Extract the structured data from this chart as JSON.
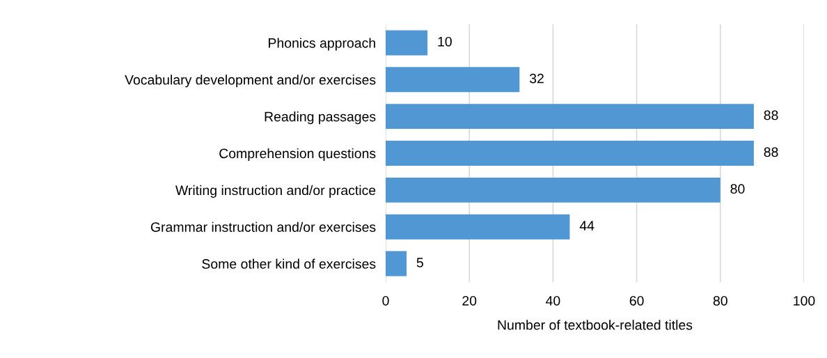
{
  "chart_data": {
    "type": "bar",
    "orientation": "horizontal",
    "xlabel": "Number of textbook-related titles",
    "categories": [
      "Phonics approach",
      "Vocabulary development and/or exercises",
      "Reading passages",
      "Comprehension questions",
      "Writing instruction and/or practice",
      "Grammar instruction and/or exercises",
      "Some other kind of exercises"
    ],
    "values": [
      10,
      32,
      88,
      88,
      80,
      44,
      5
    ],
    "color": "#5197d3",
    "xlim": [
      0,
      100
    ],
    "xticks": [
      0,
      20,
      40,
      60,
      80,
      100
    ],
    "grid": "x",
    "data_labels": true
  }
}
